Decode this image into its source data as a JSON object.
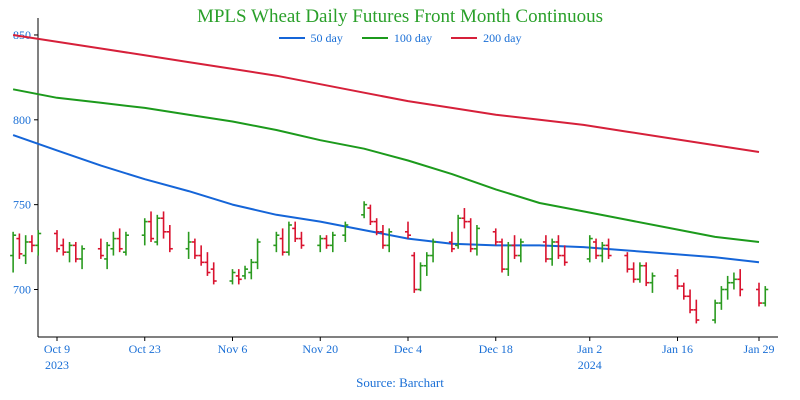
{
  "chart_data": {
    "type": "line",
    "title": "MPLS Wheat Daily Futures Front Month Continuous",
    "source": "Source: Barchart",
    "xlabel": "",
    "ylabel": "",
    "ylim": [
      672,
      860
    ],
    "y_ticks": [
      700,
      750,
      800,
      850
    ],
    "x_ticks": [
      {
        "date": "2023-10-09",
        "label": "Oct 9",
        "sublabel": "2023"
      },
      {
        "date": "2023-10-23",
        "label": "Oct 23",
        "sublabel": ""
      },
      {
        "date": "2023-11-06",
        "label": "Nov 6",
        "sublabel": ""
      },
      {
        "date": "2023-11-20",
        "label": "Nov 20",
        "sublabel": ""
      },
      {
        "date": "2023-12-04",
        "label": "Dec 4",
        "sublabel": ""
      },
      {
        "date": "2023-12-18",
        "label": "Dec 18",
        "sublabel": ""
      },
      {
        "date": "2024-01-02",
        "label": "Jan 2",
        "sublabel": "2024"
      },
      {
        "date": "2024-01-16",
        "label": "Jan 16",
        "sublabel": ""
      },
      {
        "date": "2024-01-29",
        "label": "Jan 29",
        "sublabel": ""
      }
    ],
    "grid": false,
    "legend_position": "top-center",
    "colors": {
      "text": "#1a6fd6",
      "title": "#2aa02a",
      "axis": "#000000",
      "up": "#2a9a1f",
      "down": "#d9122e"
    },
    "series": [
      {
        "name": "50 day",
        "color": "#1565d8",
        "points": [
          [
            "2023-10-02",
            791
          ],
          [
            "2023-10-09",
            782
          ],
          [
            "2023-10-16",
            773
          ],
          [
            "2023-10-23",
            765
          ],
          [
            "2023-10-30",
            758
          ],
          [
            "2023-11-06",
            750
          ],
          [
            "2023-11-13",
            744
          ],
          [
            "2023-11-20",
            740
          ],
          [
            "2023-11-27",
            735
          ],
          [
            "2023-12-04",
            730
          ],
          [
            "2023-12-11",
            727
          ],
          [
            "2023-12-18",
            726
          ],
          [
            "2023-12-25",
            726
          ],
          [
            "2024-01-01",
            725
          ],
          [
            "2024-01-08",
            723
          ],
          [
            "2024-01-15",
            721
          ],
          [
            "2024-01-22",
            719
          ],
          [
            "2024-01-29",
            716
          ]
        ]
      },
      {
        "name": "100 day",
        "color": "#1c9a1c",
        "points": [
          [
            "2023-10-02",
            818
          ],
          [
            "2023-10-09",
            813
          ],
          [
            "2023-10-16",
            810
          ],
          [
            "2023-10-23",
            807
          ],
          [
            "2023-10-30",
            803
          ],
          [
            "2023-11-06",
            799
          ],
          [
            "2023-11-13",
            794
          ],
          [
            "2023-11-20",
            788
          ],
          [
            "2023-11-27",
            783
          ],
          [
            "2023-12-04",
            776
          ],
          [
            "2023-12-11",
            768
          ],
          [
            "2023-12-18",
            759
          ],
          [
            "2023-12-25",
            751
          ],
          [
            "2024-01-01",
            746
          ],
          [
            "2024-01-08",
            741
          ],
          [
            "2024-01-15",
            736
          ],
          [
            "2024-01-22",
            731
          ],
          [
            "2024-01-29",
            728
          ]
        ]
      },
      {
        "name": "200 day",
        "color": "#d6203a",
        "points": [
          [
            "2023-10-02",
            850
          ],
          [
            "2023-10-09",
            846
          ],
          [
            "2023-10-16",
            842
          ],
          [
            "2023-10-23",
            838
          ],
          [
            "2023-10-30",
            834
          ],
          [
            "2023-11-06",
            830
          ],
          [
            "2023-11-13",
            826
          ],
          [
            "2023-11-20",
            821
          ],
          [
            "2023-11-27",
            816
          ],
          [
            "2023-12-04",
            811
          ],
          [
            "2023-12-11",
            807
          ],
          [
            "2023-12-18",
            803
          ],
          [
            "2023-12-25",
            800
          ],
          [
            "2024-01-01",
            797
          ],
          [
            "2024-01-08",
            793
          ],
          [
            "2024-01-15",
            789
          ],
          [
            "2024-01-22",
            785
          ],
          [
            "2024-01-29",
            781
          ]
        ]
      }
    ],
    "ohlc": [
      [
        "2023-10-02",
        720,
        734,
        710,
        732
      ],
      [
        "2023-10-03",
        730,
        733,
        718,
        721
      ],
      [
        "2023-10-04",
        720,
        732,
        715,
        728
      ],
      [
        "2023-10-05",
        728,
        732,
        722,
        726
      ],
      [
        "2023-10-06",
        726,
        735,
        720,
        733
      ],
      [
        "2023-10-09",
        733,
        735,
        722,
        724
      ],
      [
        "2023-10-10",
        726,
        730,
        720,
        722
      ],
      [
        "2023-10-11",
        722,
        728,
        716,
        726
      ],
      [
        "2023-10-12",
        726,
        728,
        716,
        718
      ],
      [
        "2023-10-13",
        718,
        726,
        712,
        724
      ],
      [
        "2023-10-16",
        724,
        730,
        718,
        720
      ],
      [
        "2023-10-17",
        718,
        728,
        712,
        726
      ],
      [
        "2023-10-18",
        724,
        734,
        720,
        730
      ],
      [
        "2023-10-19",
        730,
        736,
        722,
        724
      ],
      [
        "2023-10-20",
        722,
        734,
        720,
        732
      ],
      [
        "2023-10-23",
        732,
        742,
        726,
        740
      ],
      [
        "2023-10-24",
        740,
        746,
        728,
        730
      ],
      [
        "2023-10-25",
        728,
        744,
        726,
        742
      ],
      [
        "2023-10-26",
        742,
        746,
        730,
        734
      ],
      [
        "2023-10-27",
        734,
        738,
        722,
        724
      ],
      [
        "2023-10-30",
        724,
        734,
        718,
        728
      ],
      [
        "2023-10-31",
        728,
        730,
        718,
        720
      ],
      [
        "2023-11-01",
        720,
        726,
        714,
        716
      ],
      [
        "2023-11-02",
        716,
        722,
        708,
        710
      ],
      [
        "2023-11-03",
        712,
        716,
        703,
        705
      ],
      [
        "2023-11-06",
        705,
        712,
        703,
        710
      ],
      [
        "2023-11-07",
        708,
        712,
        703,
        706
      ],
      [
        "2023-11-08",
        708,
        714,
        706,
        712
      ],
      [
        "2023-11-09",
        710,
        718,
        706,
        716
      ],
      [
        "2023-11-10",
        716,
        730,
        712,
        728
      ],
      [
        "2023-11-13",
        726,
        734,
        722,
        732
      ],
      [
        "2023-11-14",
        730,
        736,
        720,
        722
      ],
      [
        "2023-11-15",
        722,
        740,
        720,
        738
      ],
      [
        "2023-11-16",
        736,
        740,
        728,
        730
      ],
      [
        "2023-11-17",
        730,
        734,
        724,
        726
      ],
      [
        "2023-11-20",
        726,
        732,
        722,
        730
      ],
      [
        "2023-11-21",
        730,
        732,
        724,
        726
      ],
      [
        "2023-11-22",
        726,
        734,
        722,
        732
      ],
      [
        "2023-11-24",
        732,
        740,
        728,
        738
      ],
      [
        "2023-11-27",
        744,
        752,
        742,
        750
      ],
      [
        "2023-11-28",
        748,
        750,
        738,
        740
      ],
      [
        "2023-11-29",
        740,
        742,
        732,
        734
      ],
      [
        "2023-11-30",
        734,
        738,
        724,
        726
      ],
      [
        "2023-12-01",
        726,
        736,
        722,
        734
      ],
      [
        "2023-12-04",
        734,
        740,
        730,
        732
      ],
      [
        "2023-12-05",
        720,
        722,
        698,
        700
      ],
      [
        "2023-12-06",
        700,
        716,
        699,
        714
      ],
      [
        "2023-12-07",
        714,
        722,
        708,
        720
      ],
      [
        "2023-12-08",
        720,
        730,
        716,
        728
      ],
      [
        "2023-12-11",
        728,
        734,
        722,
        724
      ],
      [
        "2023-12-12",
        726,
        744,
        724,
        742
      ],
      [
        "2023-12-13",
        742,
        748,
        736,
        740
      ],
      [
        "2023-12-14",
        740,
        742,
        722,
        724
      ],
      [
        "2023-12-15",
        724,
        738,
        720,
        736
      ],
      [
        "2023-12-18",
        734,
        736,
        726,
        728
      ],
      [
        "2023-12-19",
        728,
        730,
        710,
        712
      ],
      [
        "2023-12-20",
        712,
        728,
        708,
        726
      ],
      [
        "2023-12-21",
        726,
        732,
        718,
        720
      ],
      [
        "2023-12-22",
        720,
        730,
        716,
        728
      ],
      [
        "2023-12-26",
        728,
        732,
        716,
        718
      ],
      [
        "2023-12-27",
        718,
        730,
        714,
        728
      ],
      [
        "2023-12-28",
        728,
        732,
        718,
        720
      ],
      [
        "2023-12-29",
        720,
        726,
        714,
        716
      ],
      [
        "2024-01-02",
        718,
        732,
        716,
        730
      ],
      [
        "2024-01-03",
        728,
        730,
        718,
        720
      ],
      [
        "2024-01-04",
        720,
        728,
        716,
        726
      ],
      [
        "2024-01-05",
        726,
        730,
        718,
        720
      ],
      [
        "2024-01-08",
        720,
        722,
        710,
        712
      ],
      [
        "2024-01-09",
        712,
        716,
        704,
        706
      ],
      [
        "2024-01-10",
        706,
        716,
        704,
        714
      ],
      [
        "2024-01-11",
        714,
        716,
        702,
        704
      ],
      [
        "2024-01-12",
        704,
        710,
        698,
        708
      ],
      [
        "2024-01-16",
        708,
        712,
        700,
        702
      ],
      [
        "2024-01-17",
        702,
        704,
        694,
        696
      ],
      [
        "2024-01-18",
        696,
        700,
        686,
        688
      ],
      [
        "2024-01-19",
        688,
        694,
        680,
        682
      ],
      [
        "2024-01-22",
        682,
        694,
        680,
        692
      ],
      [
        "2024-01-23",
        692,
        702,
        688,
        700
      ],
      [
        "2024-01-24",
        700,
        708,
        694,
        704
      ],
      [
        "2024-01-25",
        704,
        710,
        700,
        706
      ],
      [
        "2024-01-26",
        706,
        712,
        696,
        700
      ],
      [
        "2024-01-29",
        700,
        704,
        690,
        692
      ],
      [
        "2024-01-30",
        692,
        702,
        690,
        700
      ]
    ]
  }
}
